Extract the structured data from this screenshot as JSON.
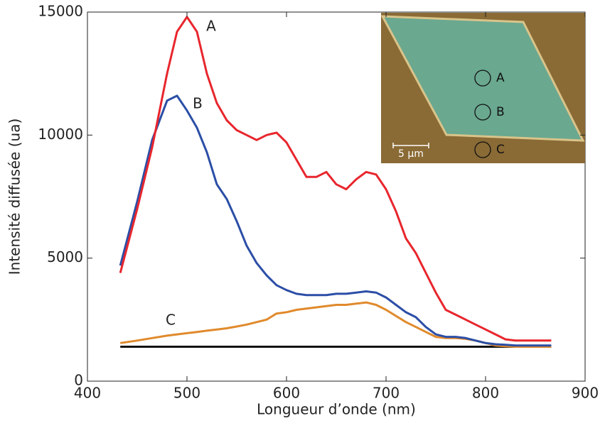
{
  "chart_data": {
    "type": "line",
    "xlabel": "Longueur d’onde (nm)",
    "ylabel": "Intensité diffusée (ua)",
    "x": [
      433,
      450,
      465,
      480,
      490,
      500,
      510,
      520,
      530,
      540,
      550,
      560,
      570,
      580,
      590,
      600,
      610,
      620,
      630,
      640,
      650,
      660,
      670,
      680,
      690,
      700,
      710,
      720,
      730,
      740,
      750,
      760,
      770,
      780,
      790,
      800,
      810,
      820,
      830,
      840,
      850,
      866
    ],
    "series": [
      {
        "name": "A",
        "color": "#e8262d",
        "values": [
          4400,
          7000,
          9500,
          12500,
          14200,
          14800,
          14200,
          12500,
          11300,
          10600,
          10200,
          10000,
          9800,
          10000,
          10100,
          9700,
          9000,
          8300,
          8300,
          8500,
          8000,
          7800,
          8200,
          8500,
          8400,
          7800,
          6900,
          5800,
          5200,
          4400,
          3600,
          2900,
          2700,
          2500,
          2300,
          2100,
          1900,
          1700,
          1650,
          1650,
          1650,
          1650
        ]
      },
      {
        "name": "B",
        "color": "#2b4ea6",
        "values": [
          4700,
          7300,
          9800,
          11400,
          11600,
          11000,
          10300,
          9300,
          8000,
          7400,
          6500,
          5500,
          4800,
          4300,
          3900,
          3700,
          3550,
          3500,
          3500,
          3500,
          3550,
          3550,
          3600,
          3650,
          3600,
          3400,
          3100,
          2800,
          2600,
          2200,
          1900,
          1800,
          1800,
          1750,
          1650,
          1550,
          1500,
          1480,
          1450,
          1450,
          1450,
          1450
        ]
      },
      {
        "name": "C",
        "color": "#e08a2c",
        "values": [
          1550,
          1650,
          1750,
          1850,
          1900,
          1950,
          2000,
          2050,
          2100,
          2150,
          2220,
          2300,
          2400,
          2500,
          2750,
          2800,
          2900,
          2950,
          3000,
          3050,
          3100,
          3100,
          3150,
          3200,
          3100,
          2900,
          2650,
          2400,
          2200,
          2000,
          1800,
          1750,
          1750,
          1720,
          1650,
          1550,
          1450,
          1420,
          1400,
          1400,
          1400,
          1400
        ]
      },
      {
        "color": "#111111",
        "values": [
          1400,
          1400,
          1400,
          1400,
          1400,
          1400,
          1400,
          1400,
          1400,
          1400,
          1400,
          1400,
          1400,
          1400,
          1400,
          1400,
          1400,
          1400,
          1400,
          1400,
          1400,
          1400,
          1400,
          1400,
          1400,
          1400,
          1400,
          1400,
          1400,
          1400,
          1400,
          1400,
          1400,
          1400,
          1400,
          1400,
          1400,
          1400,
          1400,
          1400,
          1400,
          1400
        ]
      }
    ],
    "xlim": [
      400,
      900
    ],
    "xticks": [
      400,
      500,
      600,
      700,
      800,
      900
    ],
    "ylim": [
      0,
      15000
    ],
    "yticks": [
      0,
      5000,
      10000,
      15000
    ],
    "grid": false,
    "inset": {
      "labels": [
        "A",
        "B",
        "C"
      ],
      "scale_bar": "5 µm"
    }
  }
}
